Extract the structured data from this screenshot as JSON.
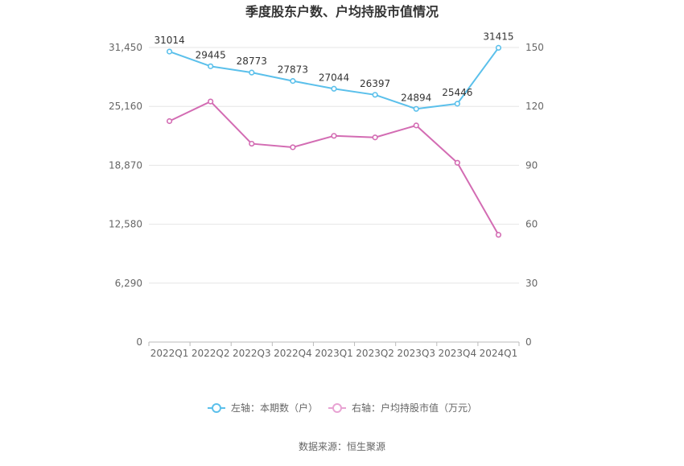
{
  "chart_data": {
    "type": "line",
    "title": "季度股东户数、户均持股市值情况",
    "categories": [
      "2022Q1",
      "2022Q2",
      "2022Q3",
      "2022Q4",
      "2023Q1",
      "2023Q2",
      "2023Q3",
      "2023Q4",
      "2024Q1"
    ],
    "left_axis": {
      "ylim": [
        0,
        31450
      ],
      "ticks": [
        "0",
        "6,290",
        "12,580",
        "18,870",
        "25,160",
        "31,450"
      ]
    },
    "right_axis": {
      "ylim": [
        0,
        150
      ],
      "ticks": [
        "0",
        "30",
        "60",
        "90",
        "120",
        "150"
      ]
    },
    "series": [
      {
        "name": "左轴：本期数（户）",
        "axis": "left",
        "color": "#5bc0eb",
        "values": [
          31014,
          29445,
          28773,
          27873,
          27044,
          26397,
          24894,
          25446,
          31415
        ],
        "labels": [
          "31014",
          "29445",
          "28773",
          "27873",
          "27044",
          "26397",
          "24894",
          "25446",
          "31415"
        ]
      },
      {
        "name": "右轴：户均持股市值（万元）",
        "axis": "right",
        "color": "#d36cb3",
        "values": [
          112.5,
          122.5,
          101.0,
          99.2,
          105.0,
          104.2,
          110.3,
          91.3,
          54.6
        ]
      }
    ],
    "grid": true,
    "legend_position": "bottom-center"
  },
  "source": "数据来源：恒生聚源"
}
